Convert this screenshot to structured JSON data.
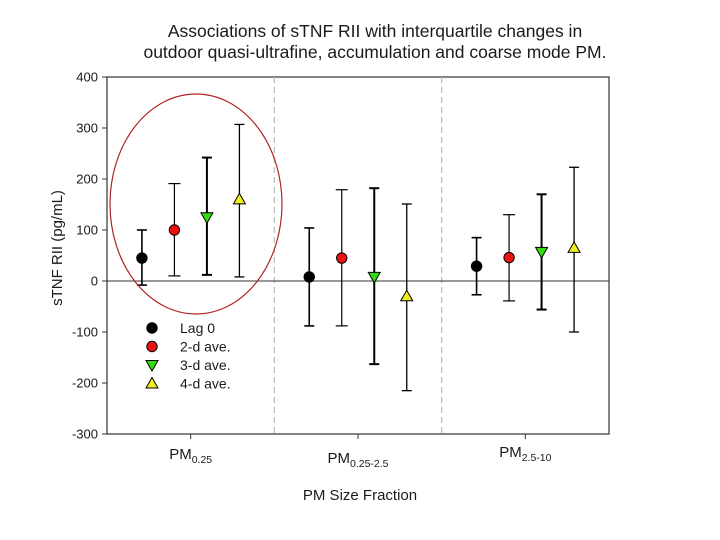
{
  "chart_data": {
    "type": "scatter",
    "title_lines": [
      "Associations of sTNF RII with interquartile changes in",
      "outdoor quasi-ultrafine, accumulation and coarse mode PM."
    ],
    "ylabel": "sTNF RII (pg/mL)",
    "xlabel": "PM Size Fraction",
    "ylim": [
      -300,
      400
    ],
    "yticks": [
      400,
      300,
      200,
      100,
      0,
      -100,
      -200,
      -300
    ],
    "groups": [
      {
        "main": "PM",
        "sub": "0.25"
      },
      {
        "main": "PM",
        "sub": "0.25-2.5"
      },
      {
        "main": "PM",
        "sub": "2.5-10"
      }
    ],
    "series": [
      {
        "name": "Lag 0",
        "marker": "circle",
        "color": "#000000",
        "points": [
          {
            "y": 45,
            "lo": -8,
            "hi": 100
          },
          {
            "y": 8,
            "lo": -88,
            "hi": 104
          },
          {
            "y": 29,
            "lo": -27,
            "hi": 85
          }
        ]
      },
      {
        "name": "2-d ave.",
        "marker": "circle",
        "color": "#ee1111",
        "points": [
          {
            "y": 100,
            "lo": 10,
            "hi": 191
          },
          {
            "y": 45,
            "lo": -88,
            "hi": 179
          },
          {
            "y": 46,
            "lo": -39,
            "hi": 130
          }
        ]
      },
      {
        "name": "3-d ave.",
        "marker": "triangle-down",
        "color": "#33dd11",
        "points": [
          {
            "y": 125,
            "lo": 12,
            "hi": 242
          },
          {
            "y": 8,
            "lo": -163,
            "hi": 182
          },
          {
            "y": 57,
            "lo": -56,
            "hi": 170
          }
        ]
      },
      {
        "name": "4-d ave.",
        "marker": "triangle-up",
        "color": "#eeee22",
        "points": [
          {
            "y": 160,
            "lo": 8,
            "hi": 307
          },
          {
            "y": -30,
            "lo": -215,
            "hi": 151
          },
          {
            "y": 65,
            "lo": -100,
            "hi": 223
          }
        ]
      }
    ],
    "legend_position": "lower-left",
    "grid": false,
    "annotation": "red ellipse around the PM0.25 group"
  }
}
